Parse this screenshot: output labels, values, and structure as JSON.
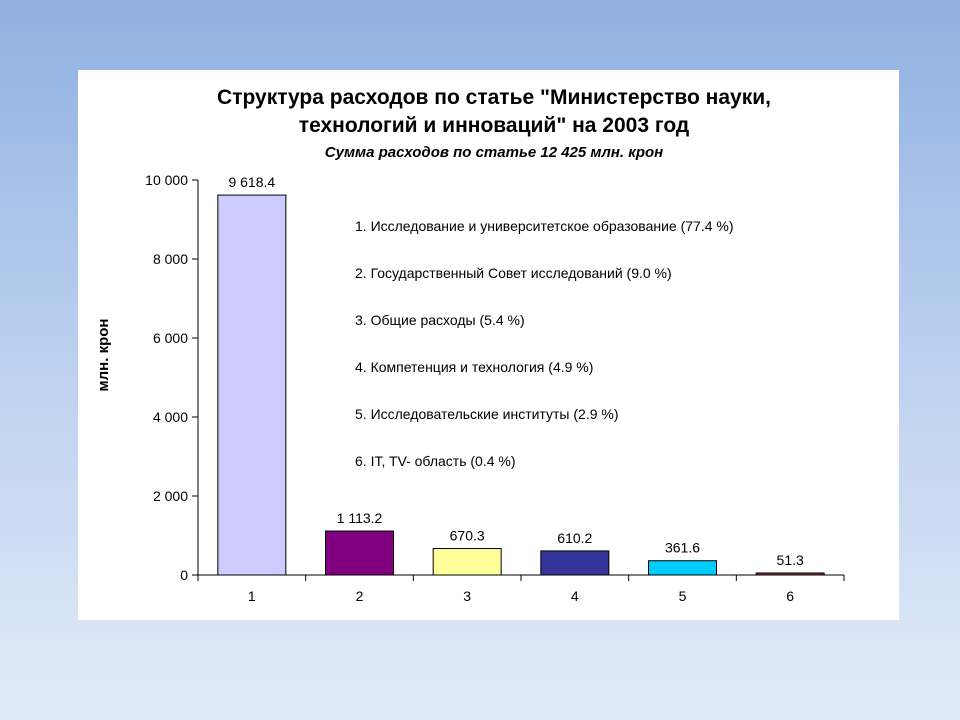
{
  "chart_data": {
    "type": "bar",
    "title_lines": [
      "Структура расходов по статье \"Министерство науки,",
      "технологий и инноваций\" на 2003 год"
    ],
    "subtitle": "Сумма расходов по статье 12 425  млн. крон",
    "ylabel": "млн. крон",
    "xlabel": "",
    "categories": [
      "1",
      "2",
      "3",
      "4",
      "5",
      "6"
    ],
    "values": [
      9618.4,
      1113.2,
      670.3,
      610.2,
      361.6,
      51.3
    ],
    "value_labels": [
      "9 618.4",
      "1 113.2",
      "670.3",
      "610.2",
      "361.6",
      "51.3"
    ],
    "colors": [
      "#ccccff",
      "#800080",
      "#ffff99",
      "#333399",
      "#00ccff",
      "#993333"
    ],
    "ylim": [
      0,
      10000
    ],
    "yticks": [
      0,
      2000,
      4000,
      6000,
      8000,
      10000
    ],
    "ytick_labels": [
      "0",
      "2 000",
      "4 000",
      "6 000",
      "8 000",
      "10 000"
    ],
    "grid": false,
    "legend_placement": "inside-top-right",
    "legend": [
      "1. Исследование и университетское образование (77.4 %)",
      "2. Государственный Совет исследований (9.0 %)",
      "3. Общие расходы (5.4 %)",
      "4. Компетенция и технология (4.9 %)",
      "5. Исследовательские институты (2.9 %)",
      "6. IT, TV- область (0.4 %)"
    ]
  }
}
